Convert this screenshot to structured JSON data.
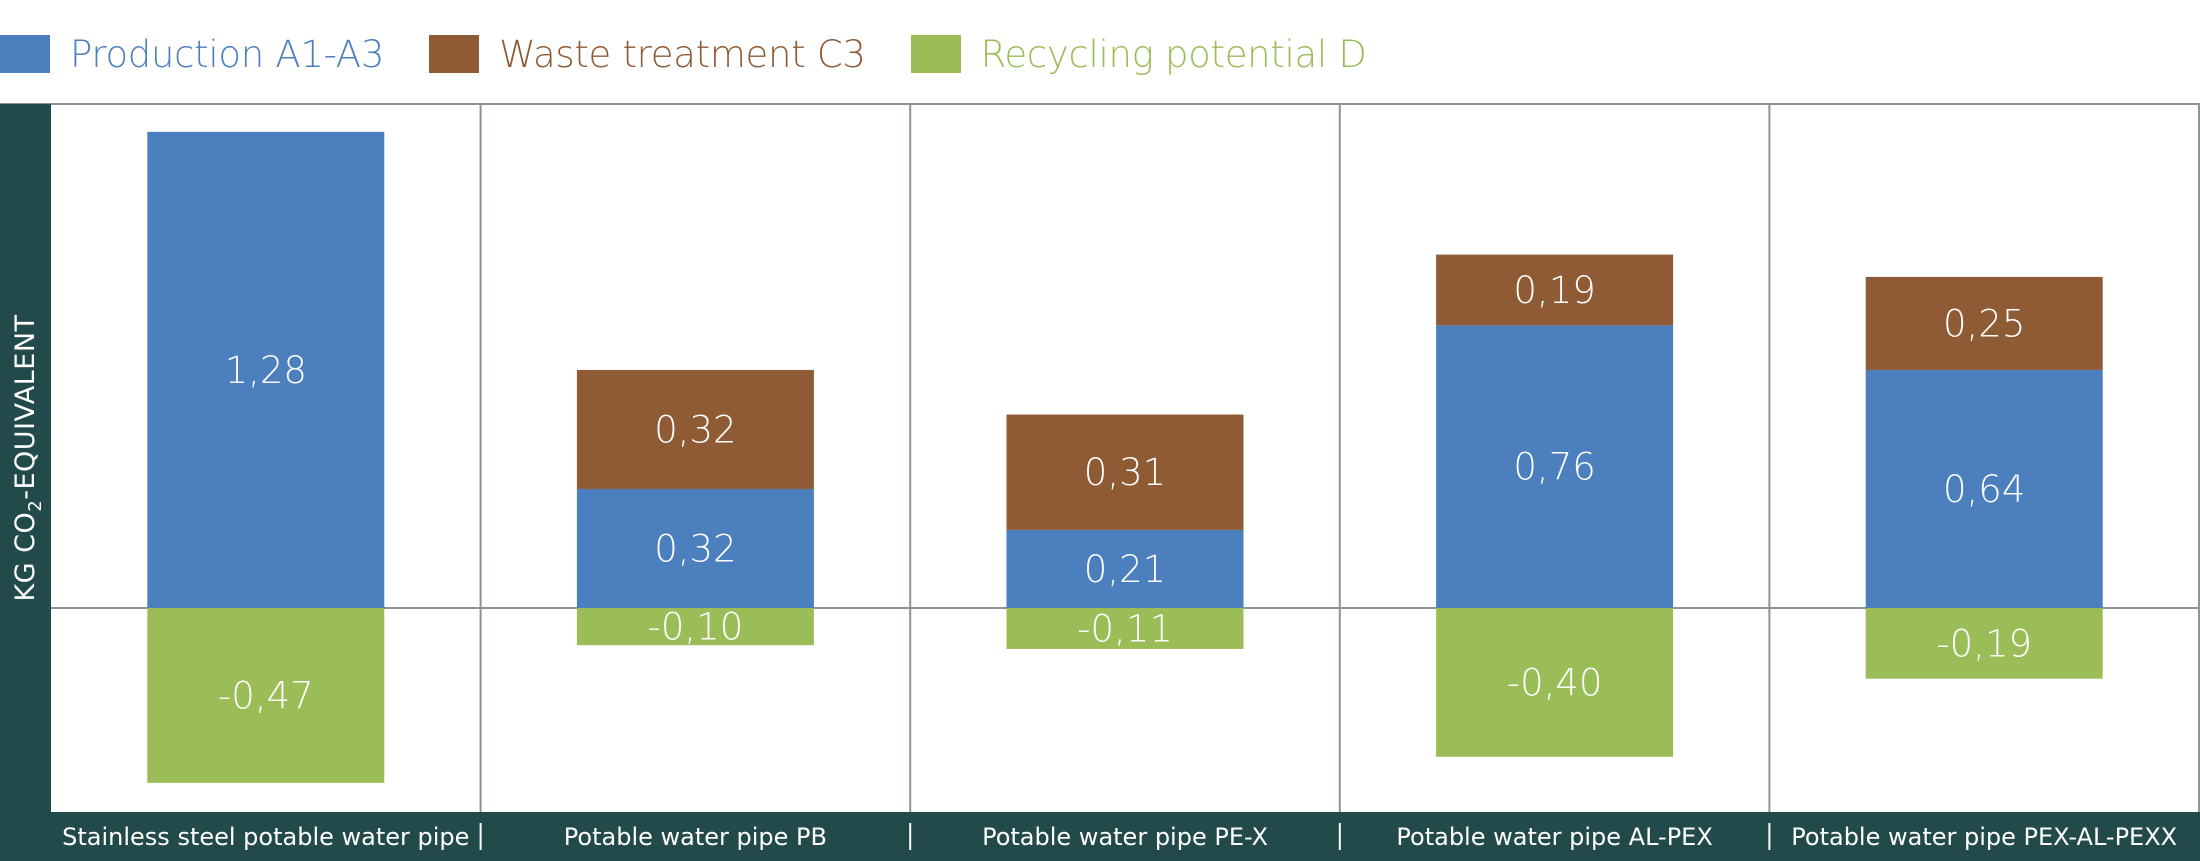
{
  "chart_data": {
    "type": "bar",
    "stacked": true,
    "ylabel_main": "KG CO",
    "ylabel_sub": "2",
    "ylabel_rest": "-EQUIVALENT",
    "categories": [
      "Stainless steel potable water pipe",
      "Potable water pipe PB",
      "Potable water pipe PE-X",
      "Potable water pipe AL-PEX",
      "Potable water pipe PEX-AL-PEXX"
    ],
    "series": [
      {
        "name": "Production A1-A3",
        "color": "#4c7fbd",
        "values": [
          1.28,
          0.32,
          0.21,
          0.76,
          0.64
        ],
        "labels": [
          "1,28",
          "0,32",
          "0,21",
          "0,76",
          "0,64"
        ]
      },
      {
        "name": "Waste treatment C3",
        "color": "#8f5b35",
        "values": [
          0,
          0.32,
          0.31,
          0.19,
          0.25
        ],
        "labels": [
          "",
          "0,32",
          "0,31",
          "0,19",
          "0,25"
        ]
      },
      {
        "name": "Recycling potential D",
        "color": "#9bbd58",
        "values": [
          -0.47,
          -0.1,
          -0.11,
          -0.4,
          -0.19
        ],
        "labels": [
          "-0,47",
          "-0,10",
          "-0,11",
          "-0,40",
          "-0,19"
        ]
      }
    ],
    "ylim": [
      -0.55,
      1.37
    ],
    "legend_position": "top-left",
    "grid": false
  },
  "colors": {
    "axis_band": "#234a4a",
    "divider": "#8a9595",
    "legend_text": [
      "#4c7fbd",
      "#8f5b35",
      "#9bbd58"
    ]
  }
}
